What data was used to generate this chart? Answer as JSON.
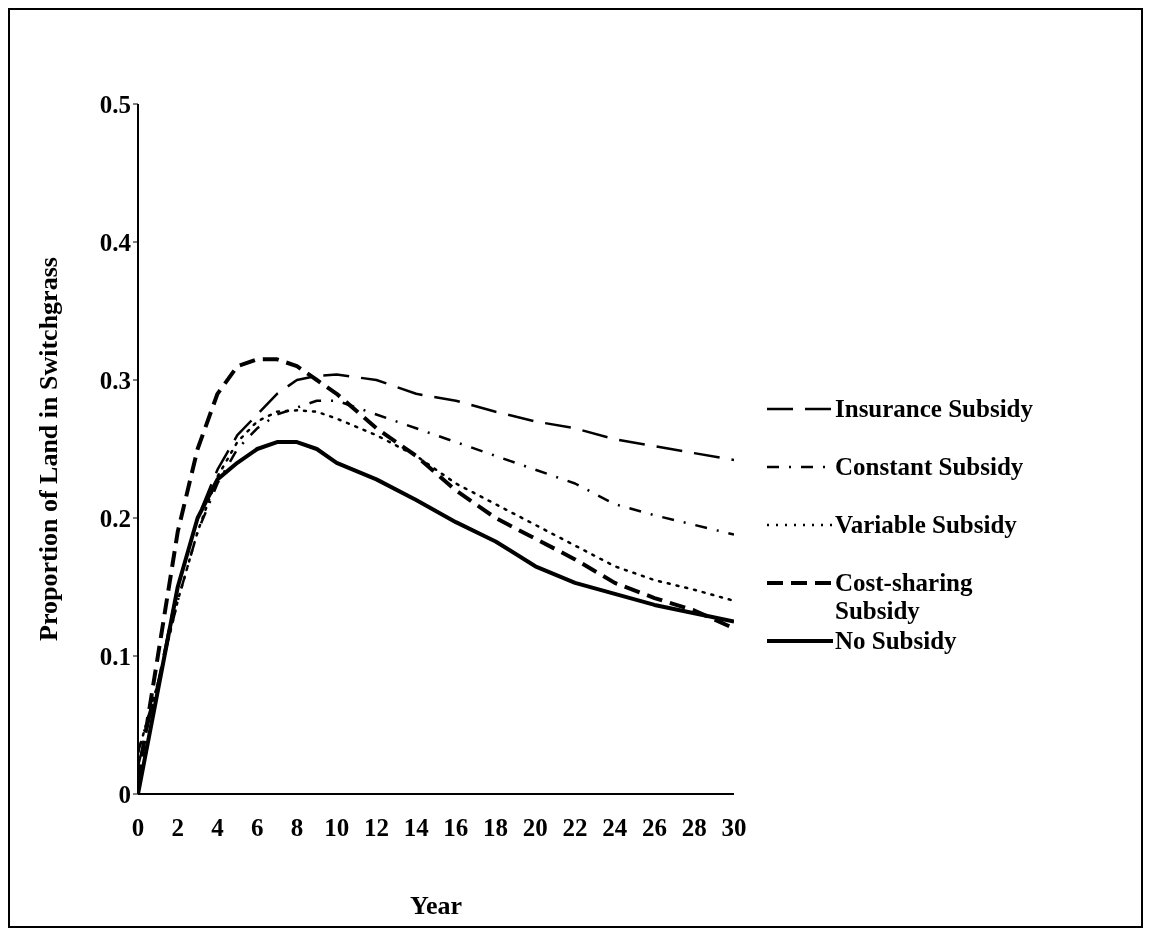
{
  "chart_data": {
    "type": "line",
    "xlabel": "Year",
    "ylabel": "Proportion  of Land in Switchgrass",
    "x": [
      0,
      1,
      2,
      3,
      4,
      5,
      6,
      7,
      8,
      9,
      10,
      12,
      14,
      16,
      18,
      20,
      22,
      24,
      26,
      28,
      30
    ],
    "xlim": [
      0,
      30
    ],
    "xticks": [
      0,
      2,
      4,
      6,
      8,
      10,
      12,
      14,
      16,
      18,
      20,
      22,
      24,
      26,
      28,
      30
    ],
    "ylim": [
      0,
      0.5
    ],
    "yticks": [
      0,
      0.1,
      0.2,
      0.3,
      0.4,
      0.5
    ],
    "legend": "right",
    "grid": false,
    "marker": "none",
    "series": [
      {
        "name": "Insurance Subsidy",
        "color": "#000000",
        "line_style": "dashed",
        "values": [
          0.02,
          0.08,
          0.15,
          0.2,
          0.235,
          0.26,
          0.275,
          0.29,
          0.3,
          0.303,
          0.304,
          0.3,
          0.29,
          0.285,
          0.277,
          0.27,
          0.265,
          0.257,
          0.252,
          0.247,
          0.242
        ]
      },
      {
        "name": "Constant Subsidy",
        "color": "#000000",
        "line_style": "dashdot",
        "values": [
          0.03,
          0.08,
          0.14,
          0.19,
          0.225,
          0.25,
          0.265,
          0.275,
          0.28,
          0.285,
          0.285,
          0.275,
          0.265,
          0.255,
          0.245,
          0.235,
          0.225,
          0.21,
          0.202,
          0.195,
          0.188
        ]
      },
      {
        "name": "Variable Subsidy",
        "color": "#000000",
        "line_style": "dotted",
        "values": [
          0.03,
          0.08,
          0.14,
          0.19,
          0.23,
          0.255,
          0.27,
          0.277,
          0.278,
          0.277,
          0.272,
          0.26,
          0.245,
          0.225,
          0.21,
          0.195,
          0.18,
          0.165,
          0.155,
          0.148,
          0.14
        ]
      },
      {
        "name": "Cost-sharing Subsidy",
        "color": "#000000",
        "line_style": "dashed",
        "values": [
          0.01,
          0.1,
          0.19,
          0.25,
          0.29,
          0.31,
          0.315,
          0.315,
          0.31,
          0.3,
          0.29,
          0.265,
          0.245,
          0.22,
          0.2,
          0.185,
          0.17,
          0.153,
          0.142,
          0.133,
          0.12
        ]
      },
      {
        "name": "No Subsidy",
        "color": "#000000",
        "line_style": "solid",
        "values": [
          0,
          0.075,
          0.15,
          0.2,
          0.228,
          0.24,
          0.25,
          0.255,
          0.255,
          0.25,
          0.24,
          0.228,
          0.213,
          0.197,
          0.183,
          0.165,
          0.153,
          0.145,
          0.137,
          0.131,
          0.125
        ]
      }
    ]
  }
}
